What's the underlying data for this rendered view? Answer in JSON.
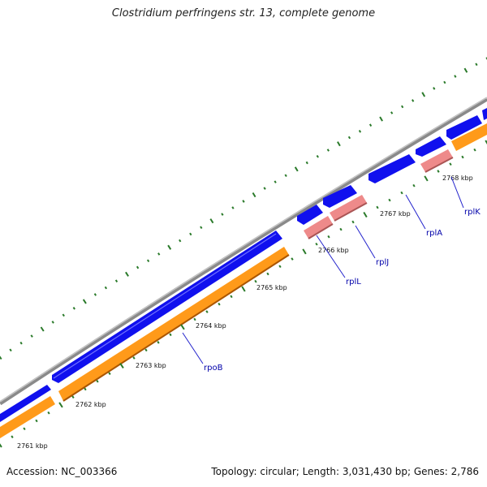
{
  "title": "Clostridium perfringens str. 13, complete genome",
  "footer": {
    "accession": "Accession: NC_003366",
    "summary": "Topology: circular; Length: 3,031,430 bp; Genes: 2,786"
  },
  "colors": {
    "backbone": "#8a8a8a",
    "cds_forward": "#1010ee",
    "gene_orange": "#ff9a1a",
    "gene_pink": "#ee8a8a",
    "tick": "#2a7a2a",
    "label": "#0000aa",
    "leader": "#2222cc"
  },
  "ticks": [
    {
      "label": "2761 kbp"
    },
    {
      "label": "2762 kbp"
    },
    {
      "label": "2763 kbp"
    },
    {
      "label": "2764 kbp"
    },
    {
      "label": "2765 kbp"
    },
    {
      "label": "2766 kbp"
    },
    {
      "label": "2767 kbp"
    },
    {
      "label": "2768 kbp"
    }
  ],
  "genes": [
    {
      "name": "rpoB"
    },
    {
      "name": "rplL"
    },
    {
      "name": "rplJ"
    },
    {
      "name": "rplA"
    },
    {
      "name": "rplK"
    }
  ]
}
